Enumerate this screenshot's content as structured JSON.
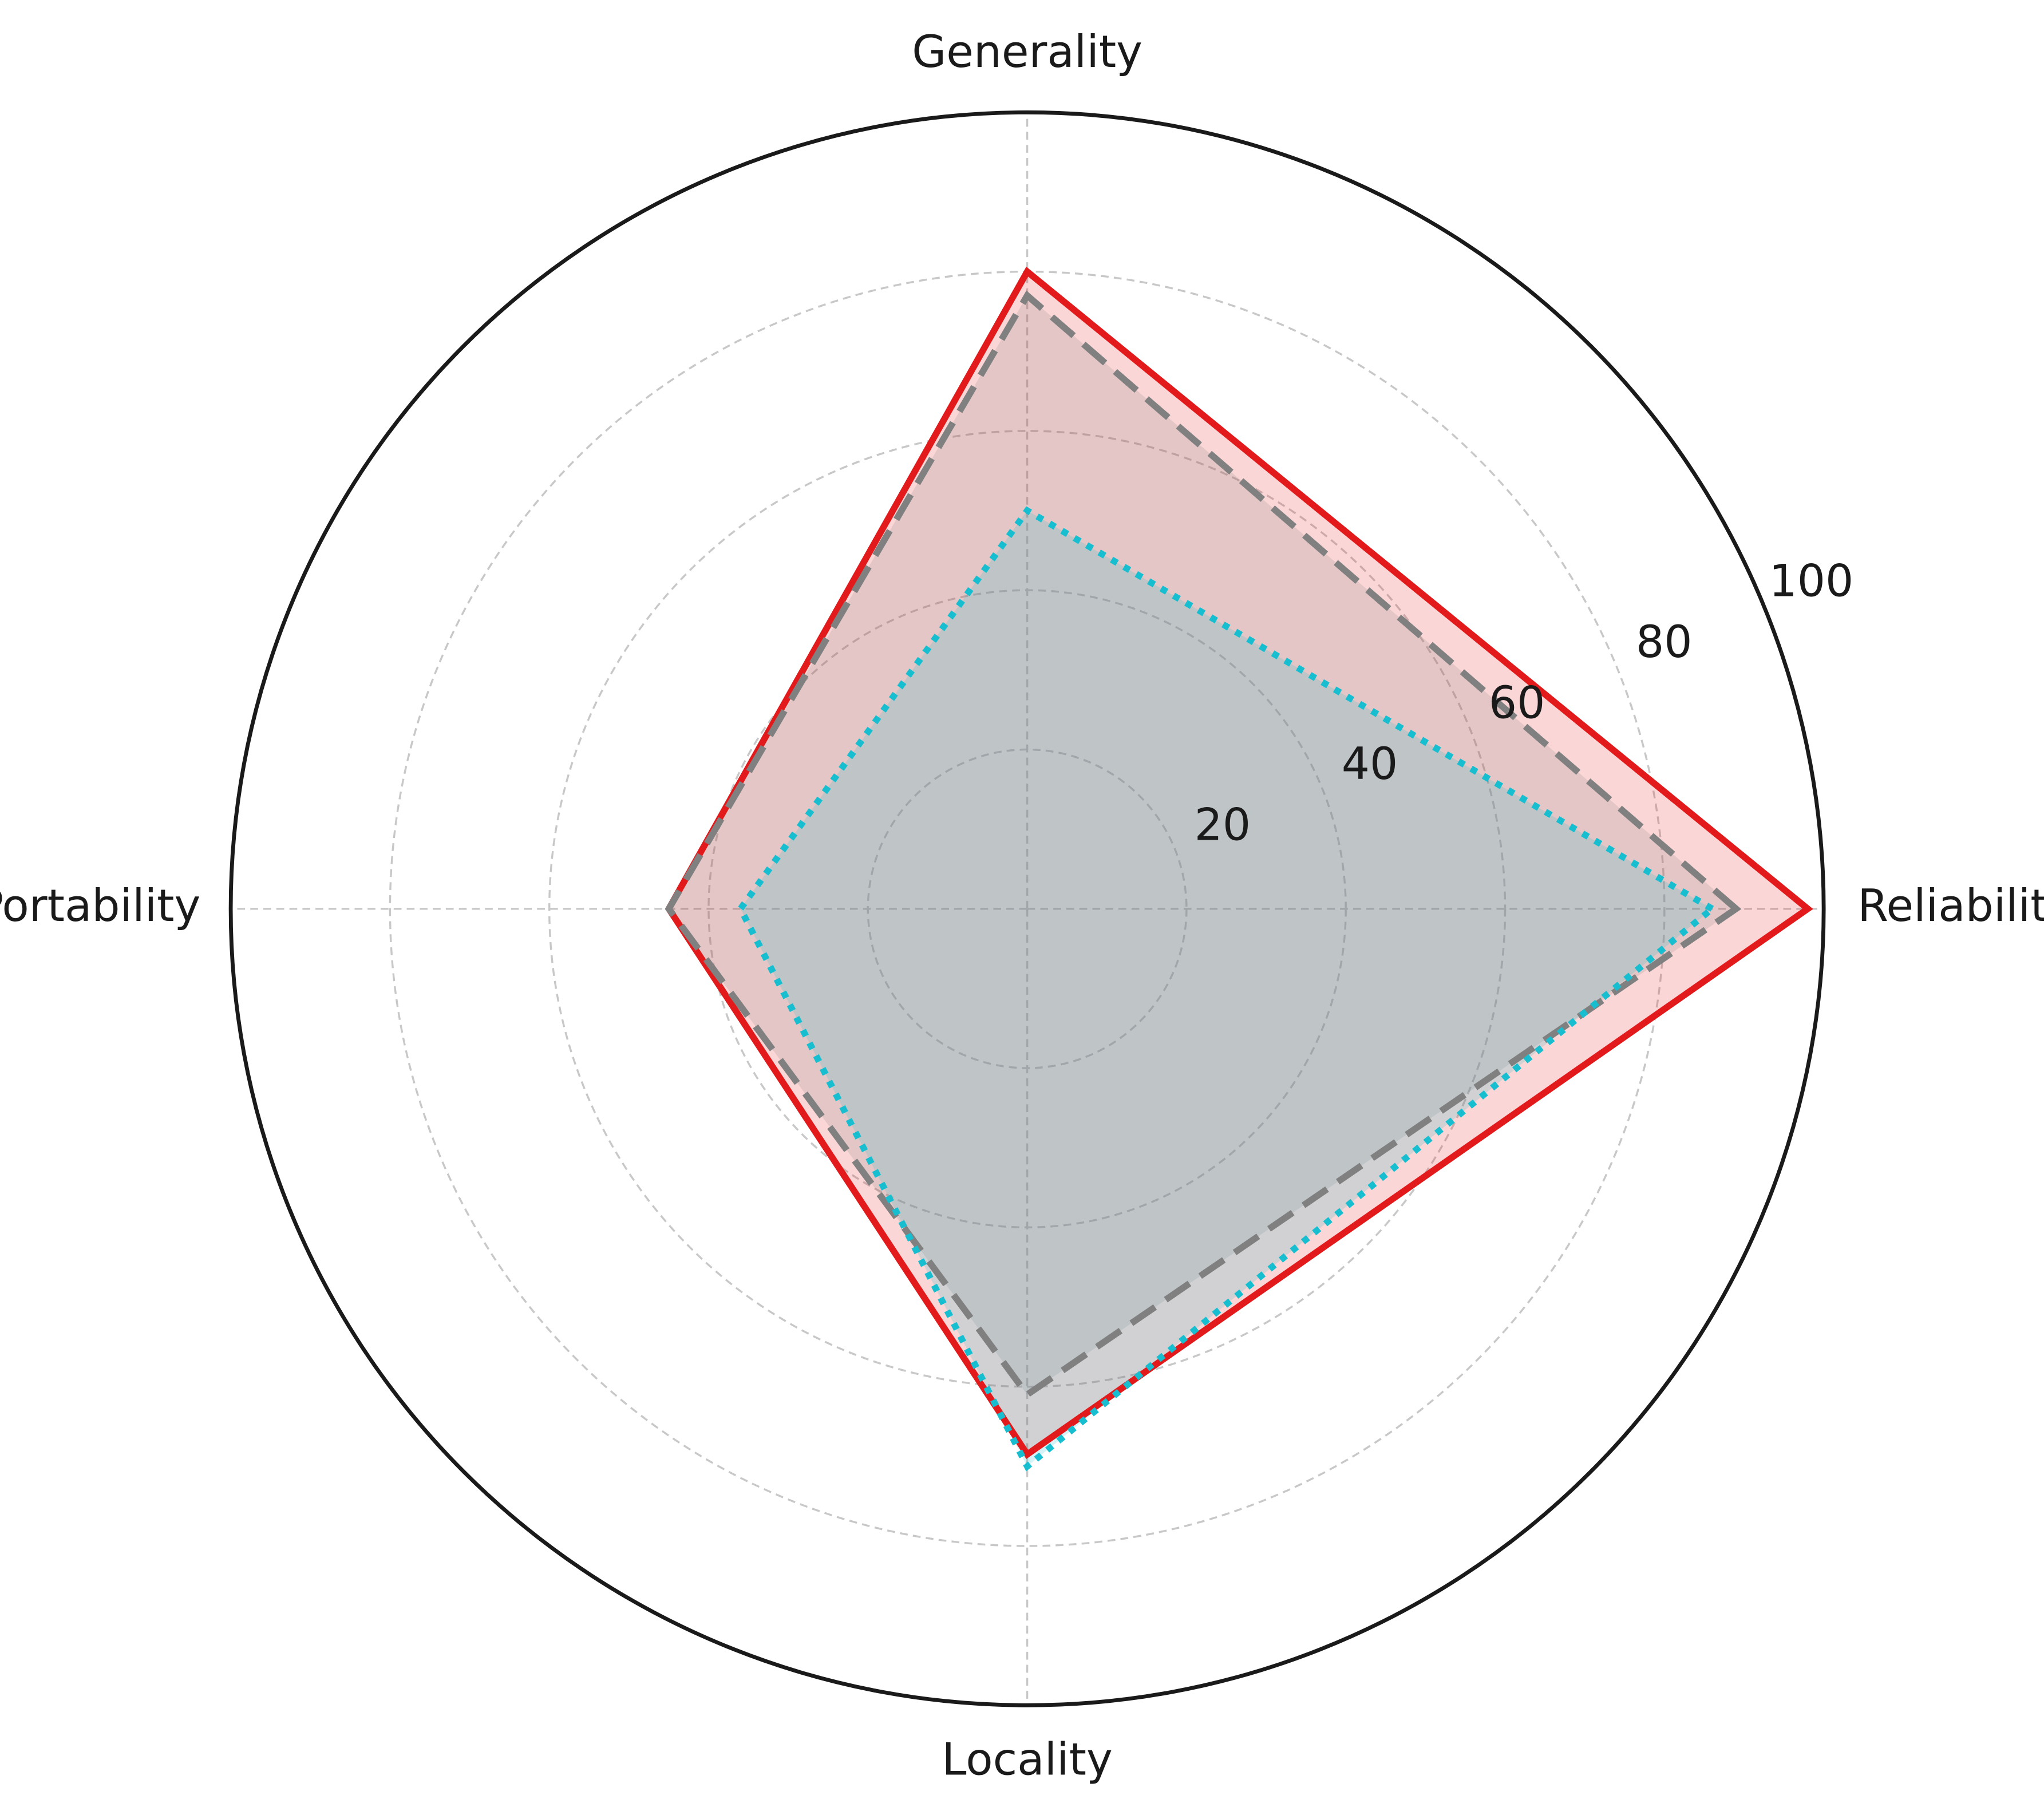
{
  "chart_data": {
    "type": "radar",
    "categories": [
      "Reliability",
      "Generality",
      "Portability",
      "Locality"
    ],
    "series": [
      {
        "color": "#e31a1c",
        "linestyle": "solid",
        "values": [
          98,
          80,
          45,
          68.5
        ]
      },
      {
        "color": "#808080",
        "linestyle": "dashed",
        "values": [
          89,
          77,
          45,
          61
        ]
      },
      {
        "color": "#17becf",
        "linestyle": "dotted",
        "values": [
          86,
          50,
          36,
          70
        ]
      }
    ],
    "ylim": [
      0,
      100
    ],
    "yticks": [
      20,
      40,
      60,
      80,
      100
    ],
    "grid": true
  }
}
